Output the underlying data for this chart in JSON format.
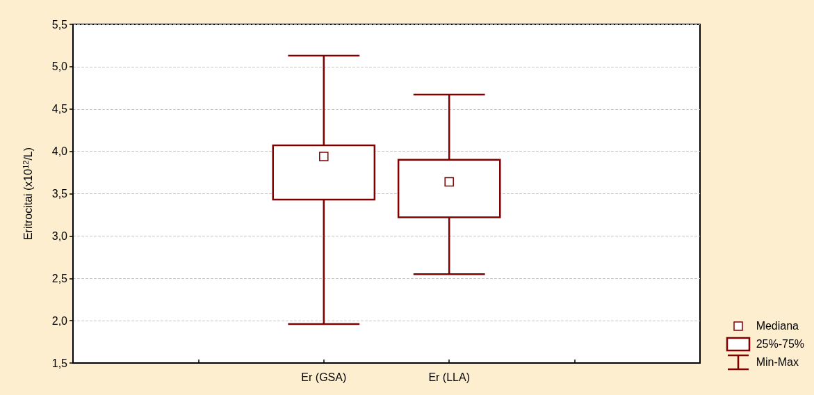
{
  "chart_data": {
    "type": "box",
    "ylabel": "Eritrocitai (x10$^{12}$/L)",
    "categories": [
      null,
      null,
      "Er (GSA)",
      "Er (LLA)",
      null,
      null
    ],
    "ylim": [
      1.5,
      5.5
    ],
    "yticks": [
      {
        "value": 1.5,
        "label": "1,5"
      },
      {
        "value": 2.0,
        "label": "2,0"
      },
      {
        "value": 2.5,
        "label": "2,5"
      },
      {
        "value": 3.0,
        "label": "3,0"
      },
      {
        "value": 3.5,
        "label": "3,5"
      },
      {
        "value": 4.0,
        "label": "4,0"
      },
      {
        "value": 4.5,
        "label": "4,5"
      },
      {
        "value": 5.0,
        "label": "5,0"
      },
      {
        "value": 5.5,
        "label": "5,5"
      }
    ],
    "grid": "y",
    "marker": "square",
    "series": [
      {
        "color": "#800000",
        "boxes": [
          null,
          null,
          {
            "low": 1.96,
            "q1": 3.43,
            "median": 3.94,
            "q3": 4.07,
            "high": 5.13
          },
          {
            "low": 2.55,
            "q1": 3.22,
            "median": 3.64,
            "q3": 3.9,
            "high": 4.67
          },
          null,
          null
        ]
      }
    ],
    "annotations": [
      "Mediana",
      "25%-75%",
      "Min-Max"
    ]
  }
}
